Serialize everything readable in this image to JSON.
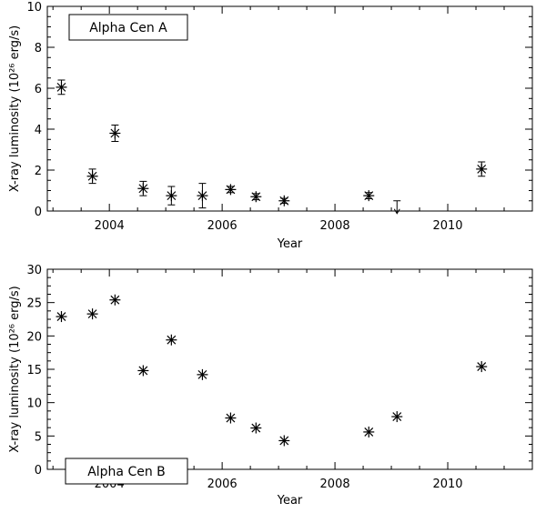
{
  "chart_data": [
    {
      "type": "scatter",
      "title": "",
      "legend_label": "Alpha Cen A",
      "legend_placement": "top-left",
      "xlabel": "Year",
      "ylabel": "X-ray luminosity (10²⁶ erg/s)",
      "xlim": [
        2002.9,
        2011.5
      ],
      "ylim": [
        0,
        10
      ],
      "x_ticks": [
        2004,
        2006,
        2008,
        2010
      ],
      "y_ticks": [
        0,
        2,
        4,
        6,
        8,
        10
      ],
      "grid": false,
      "marker": "asterisk",
      "points": [
        {
          "x": 2003.15,
          "y": 6.05,
          "err": 0.35
        },
        {
          "x": 2003.7,
          "y": 1.7,
          "err": 0.35
        },
        {
          "x": 2004.1,
          "y": 3.8,
          "err": 0.4
        },
        {
          "x": 2004.6,
          "y": 1.1,
          "err": 0.35
        },
        {
          "x": 2005.1,
          "y": 0.75,
          "err": 0.45
        },
        {
          "x": 2005.65,
          "y": 0.75,
          "err": 0.6
        },
        {
          "x": 2006.15,
          "y": 1.05,
          "err": 0.15
        },
        {
          "x": 2006.6,
          "y": 0.7,
          "err": 0.15
        },
        {
          "x": 2007.1,
          "y": 0.5,
          "err": 0.12
        },
        {
          "x": 2008.6,
          "y": 0.75,
          "err": 0.15
        },
        {
          "x": 2010.6,
          "y": 2.05,
          "err": 0.35
        }
      ],
      "upper_limits": [
        {
          "x": 2009.1,
          "y": 0.5
        }
      ]
    },
    {
      "type": "scatter",
      "title": "",
      "legend_label": "Alpha Cen B",
      "legend_placement": "bottom-left",
      "xlabel": "Year",
      "ylabel": "X-ray luminosity (10²⁶ erg/s)",
      "xlim": [
        2002.9,
        2011.5
      ],
      "ylim": [
        0,
        30
      ],
      "x_ticks": [
        2004,
        2006,
        2008,
        2010
      ],
      "y_ticks": [
        0,
        5,
        10,
        15,
        20,
        25,
        30
      ],
      "grid": false,
      "marker": "asterisk",
      "points": [
        {
          "x": 2003.15,
          "y": 22.9
        },
        {
          "x": 2003.7,
          "y": 23.3
        },
        {
          "x": 2004.1,
          "y": 25.4
        },
        {
          "x": 2004.6,
          "y": 14.8
        },
        {
          "x": 2005.1,
          "y": 19.4
        },
        {
          "x": 2005.65,
          "y": 14.2
        },
        {
          "x": 2006.15,
          "y": 7.7
        },
        {
          "x": 2006.6,
          "y": 6.2
        },
        {
          "x": 2007.1,
          "y": 4.3
        },
        {
          "x": 2008.6,
          "y": 5.6
        },
        {
          "x": 2009.1,
          "y": 7.9
        },
        {
          "x": 2010.6,
          "y": 15.4
        }
      ],
      "upper_limits": []
    }
  ]
}
